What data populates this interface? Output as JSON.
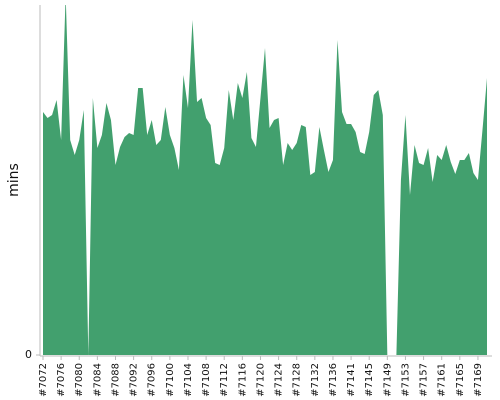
{
  "chart_data": {
    "type": "area",
    "y_label": "mins",
    "color": "#42a06e",
    "ylim": [
      0,
      350
    ],
    "yticks": [
      0
    ],
    "categories": [
      "#7072",
      null,
      null,
      null,
      "#7076",
      null,
      null,
      null,
      "#7080",
      null,
      null,
      null,
      "#7084",
      null,
      null,
      null,
      "#7088",
      null,
      null,
      null,
      "#7092",
      null,
      null,
      null,
      "#7096",
      null,
      null,
      null,
      "#7100",
      null,
      null,
      null,
      "#7104",
      null,
      null,
      null,
      "#7108",
      null,
      null,
      null,
      "#7112",
      null,
      null,
      null,
      "#7116",
      null,
      null,
      null,
      "#7120",
      null,
      null,
      null,
      "#7124",
      null,
      null,
      null,
      "#7128",
      null,
      null,
      null,
      "#7132",
      null,
      null,
      null,
      "#7136",
      null,
      null,
      null,
      "#7141",
      null,
      null,
      null,
      "#7145",
      null,
      null,
      null,
      "#7149",
      null,
      null,
      null,
      "#7153",
      null,
      null,
      null,
      "#7157",
      null,
      null,
      null,
      "#7161",
      null,
      null,
      null,
      "#7165",
      null,
      null,
      null,
      "#7169",
      null,
      null
    ],
    "values": [
      243,
      237,
      240,
      255,
      215,
      360,
      215,
      200,
      215,
      245,
      0,
      257,
      207,
      220,
      252,
      235,
      190,
      208,
      218,
      222,
      220,
      267,
      267,
      220,
      235,
      210,
      215,
      248,
      220,
      207,
      185,
      280,
      247,
      335,
      253,
      257,
      237,
      230,
      192,
      190,
      207,
      265,
      235,
      272,
      257,
      283,
      217,
      208,
      257,
      307,
      227,
      235,
      237,
      190,
      212,
      205,
      212,
      230,
      228,
      180,
      183,
      228,
      205,
      183,
      195,
      315,
      243,
      231,
      231,
      223,
      203,
      201,
      223,
      260,
      265,
      240,
      0,
      0,
      0,
      175,
      240,
      160,
      210,
      192,
      190,
      207,
      173,
      200,
      195,
      210,
      193,
      181,
      195,
      195,
      202,
      182,
      175,
      225,
      277
    ]
  }
}
